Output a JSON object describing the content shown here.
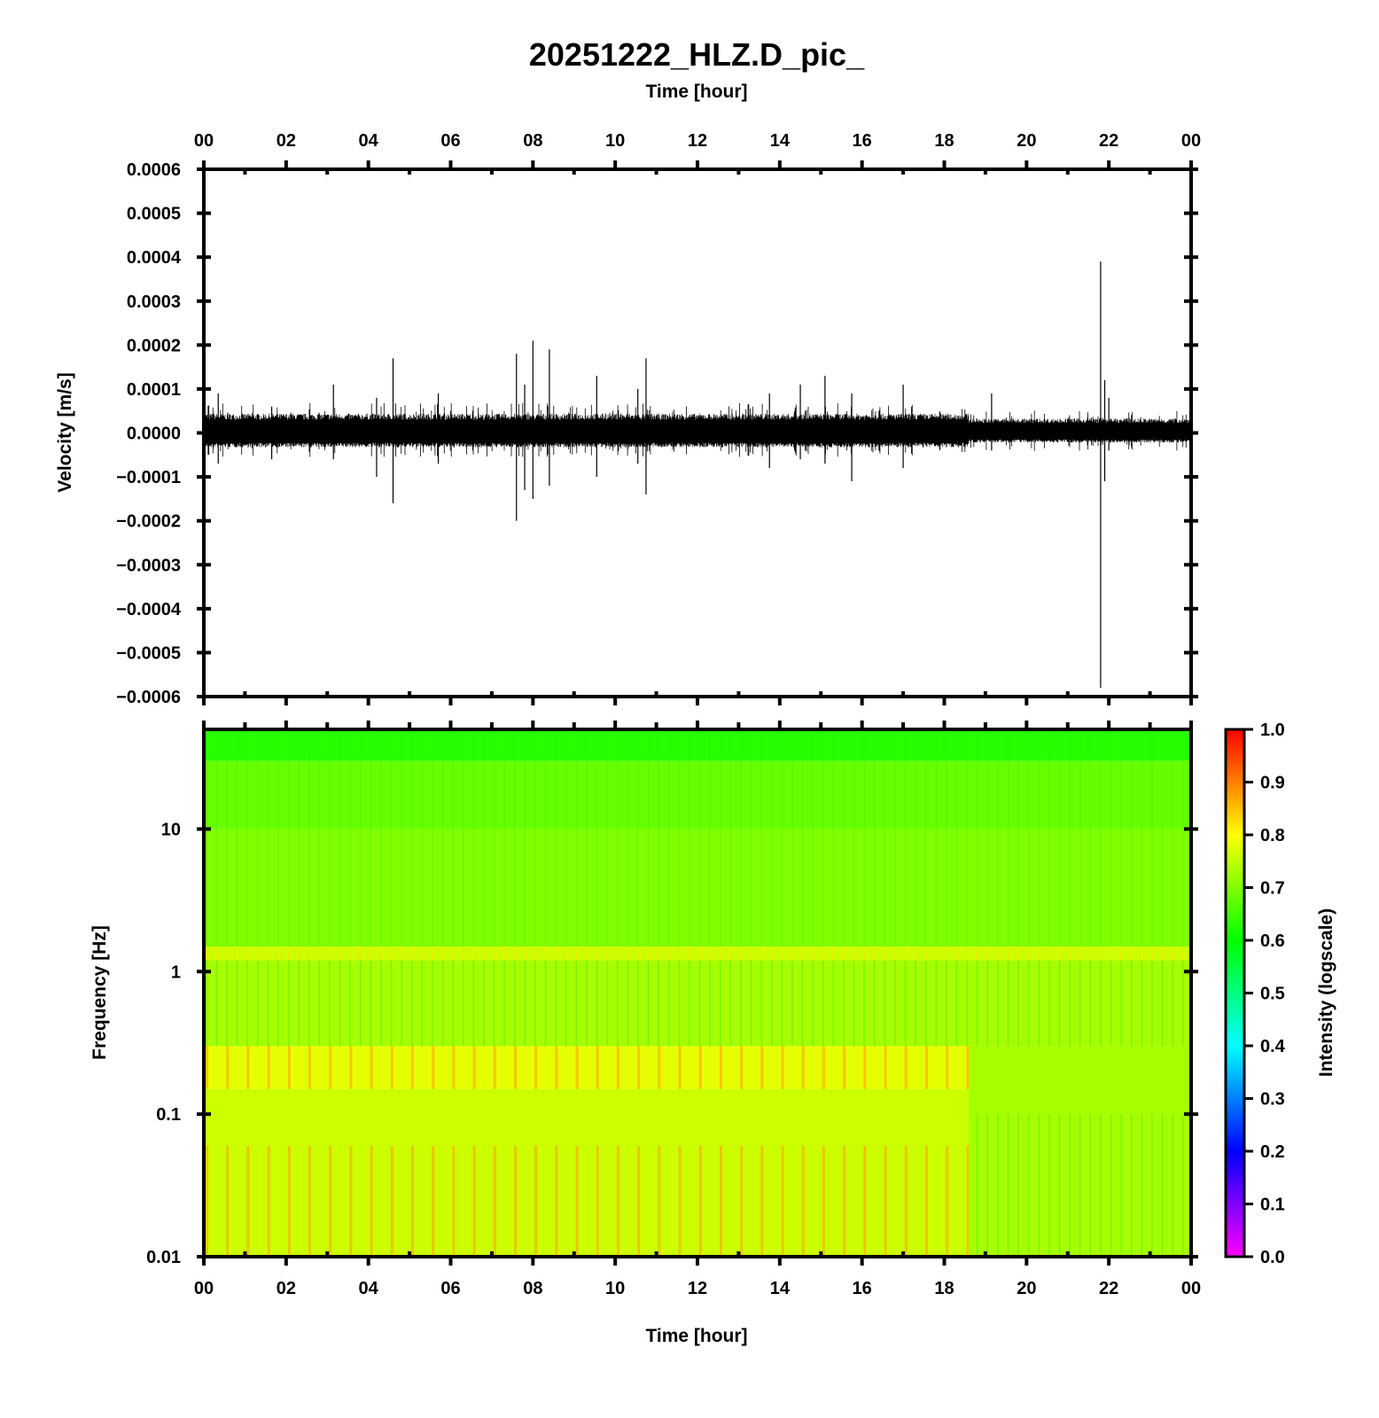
{
  "chart_data": [
    {
      "type": "line",
      "panel": "waveform",
      "title": "20251222_HLZ.D_pic_",
      "xlabel": "Time [hour]",
      "ylabel": "Velocity [m/s]",
      "xlim": [
        0,
        24
      ],
      "ylim": [
        -0.0006,
        0.0006
      ],
      "x_ticks": [
        "00",
        "02",
        "04",
        "06",
        "08",
        "10",
        "12",
        "14",
        "16",
        "18",
        "20",
        "22",
        "00"
      ],
      "y_ticks": [
        "0.0006",
        "0.0005",
        "0.0004",
        "0.0003",
        "0.0002",
        "0.0001",
        "0.0000",
        "−0.0001",
        "−0.0002",
        "−0.0003",
        "−0.0004",
        "−0.0005",
        "−0.0006"
      ],
      "noise_envelope": [
        {
          "x": [
            0.0,
            18.6
          ],
          "upper": 4e-05,
          "lower": -3e-05
        },
        {
          "x": [
            18.6,
            24.0
          ],
          "upper": 3e-05,
          "lower": -2e-05
        }
      ],
      "spikes": [
        {
          "x": 0.35,
          "max": 9e-05,
          "min": -7e-05
        },
        {
          "x": 1.65,
          "max": 6e-05,
          "min": -6e-05
        },
        {
          "x": 3.15,
          "max": 0.00011,
          "min": -6e-05
        },
        {
          "x": 4.2,
          "max": 8e-05,
          "min": -0.0001
        },
        {
          "x": 4.6,
          "max": 0.00017,
          "min": -0.00016
        },
        {
          "x": 5.7,
          "max": 9e-05,
          "min": -7e-05
        },
        {
          "x": 7.6,
          "max": 0.00018,
          "min": -0.0002
        },
        {
          "x": 7.8,
          "max": 0.00011,
          "min": -0.00013
        },
        {
          "x": 8.0,
          "max": 0.00021,
          "min": -0.00015
        },
        {
          "x": 8.4,
          "max": 0.00019,
          "min": -0.00012
        },
        {
          "x": 9.55,
          "max": 0.00013,
          "min": -0.0001
        },
        {
          "x": 10.55,
          "max": 0.0001,
          "min": -7e-05
        },
        {
          "x": 10.75,
          "max": 0.00017,
          "min": -0.00014
        },
        {
          "x": 13.75,
          "max": 9e-05,
          "min": -8e-05
        },
        {
          "x": 14.5,
          "max": 0.00011,
          "min": -6e-05
        },
        {
          "x": 15.1,
          "max": 0.00013,
          "min": -7e-05
        },
        {
          "x": 15.75,
          "max": 9e-05,
          "min": -0.00011
        },
        {
          "x": 17.0,
          "max": 0.00011,
          "min": -8e-05
        },
        {
          "x": 19.15,
          "max": 9e-05,
          "min": -4e-05
        },
        {
          "x": 21.8,
          "max": 0.00039,
          "min": -0.00058
        },
        {
          "x": 21.9,
          "max": 0.00012,
          "min": -0.00011
        },
        {
          "x": 22.0,
          "max": 8e-05,
          "min": -4e-05
        }
      ]
    },
    {
      "type": "heatmap",
      "panel": "spectrogram",
      "xlabel": "Time [hour]",
      "ylabel": "Frequency [Hz]",
      "xlim": [
        0,
        24
      ],
      "ylim": [
        0.01,
        50
      ],
      "y_scale": "log",
      "x_ticks": [
        "00",
        "02",
        "04",
        "06",
        "08",
        "10",
        "12",
        "14",
        "16",
        "18",
        "20",
        "22",
        "00"
      ],
      "y_ticks": [
        "10",
        "1",
        "0.1",
        "0.01"
      ],
      "colorbar": {
        "label": "Intensity (logscale)",
        "range": [
          0.0,
          1.0
        ],
        "ticks": [
          "1.0",
          "0.9",
          "0.8",
          "0.7",
          "0.6",
          "0.5",
          "0.4",
          "0.3",
          "0.2",
          "0.1",
          "0.0"
        ],
        "colormap": [
          "#ff00ff",
          "#0000ff",
          "#00ffff",
          "#00ff00",
          "#ffff00",
          "#ff0000"
        ]
      },
      "intensity_bands": [
        {
          "freq": [
            50,
            30
          ],
          "value": 0.63
        },
        {
          "freq": [
            30,
            10
          ],
          "value": 0.68
        },
        {
          "freq": [
            10,
            1.5
          ],
          "value": 0.7
        },
        {
          "freq": [
            1.5,
            1.2
          ],
          "value": 0.76
        },
        {
          "freq": [
            1.2,
            0.3
          ],
          "value": 0.73
        },
        {
          "freq": [
            0.3,
            0.15
          ],
          "value": 0.78
        },
        {
          "freq": [
            0.15,
            0.01
          ],
          "value": 0.76
        }
      ],
      "regime_change_hour": 18.6
    }
  ]
}
